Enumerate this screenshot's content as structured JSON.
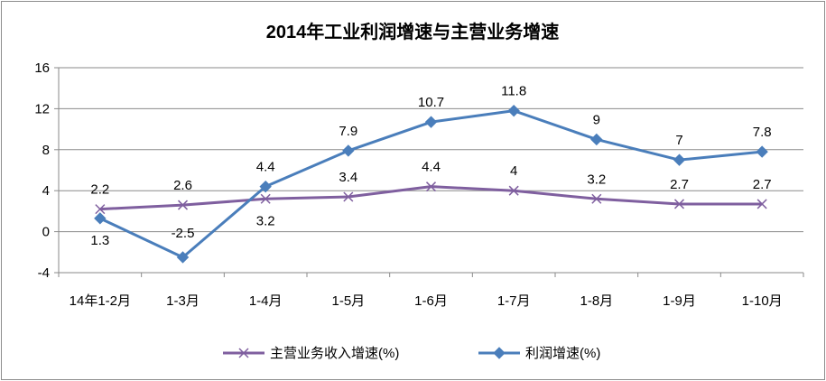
{
  "chart_data": {
    "type": "line",
    "title": "2014年工业利润增速与主营业务增速",
    "categories": [
      "14年1-2月",
      "1-3月",
      "1-4月",
      "1-5月",
      "1-6月",
      "1-7月",
      "1-8月",
      "1-9月",
      "1-10月"
    ],
    "series": [
      {
        "name": "主营业务收入增速(%)",
        "values": [
          2.2,
          2.6,
          3.2,
          3.4,
          4.4,
          4.0,
          3.2,
          2.7,
          2.7
        ],
        "labels": [
          "2.2",
          "2.6",
          "3.2",
          "3.4",
          "4.4",
          "4",
          "3.2",
          "2.7",
          "2.7"
        ],
        "color": "#7f5f9f",
        "marker": "x"
      },
      {
        "name": "利润增速(%)",
        "values": [
          1.3,
          -2.5,
          4.4,
          7.9,
          10.7,
          11.8,
          9.0,
          7.0,
          7.8
        ],
        "labels": [
          "1.3",
          "-2.5",
          "4.4",
          "7.9",
          "10.7",
          "11.8",
          "9",
          "7",
          "7.8"
        ],
        "color": "#4a7ebb",
        "marker": "diamond"
      }
    ],
    "ylim": [
      -4,
      16
    ],
    "yticks": [
      "-4",
      "0",
      "4",
      "8",
      "12",
      "16"
    ],
    "grid": true,
    "legend": "bottom"
  }
}
